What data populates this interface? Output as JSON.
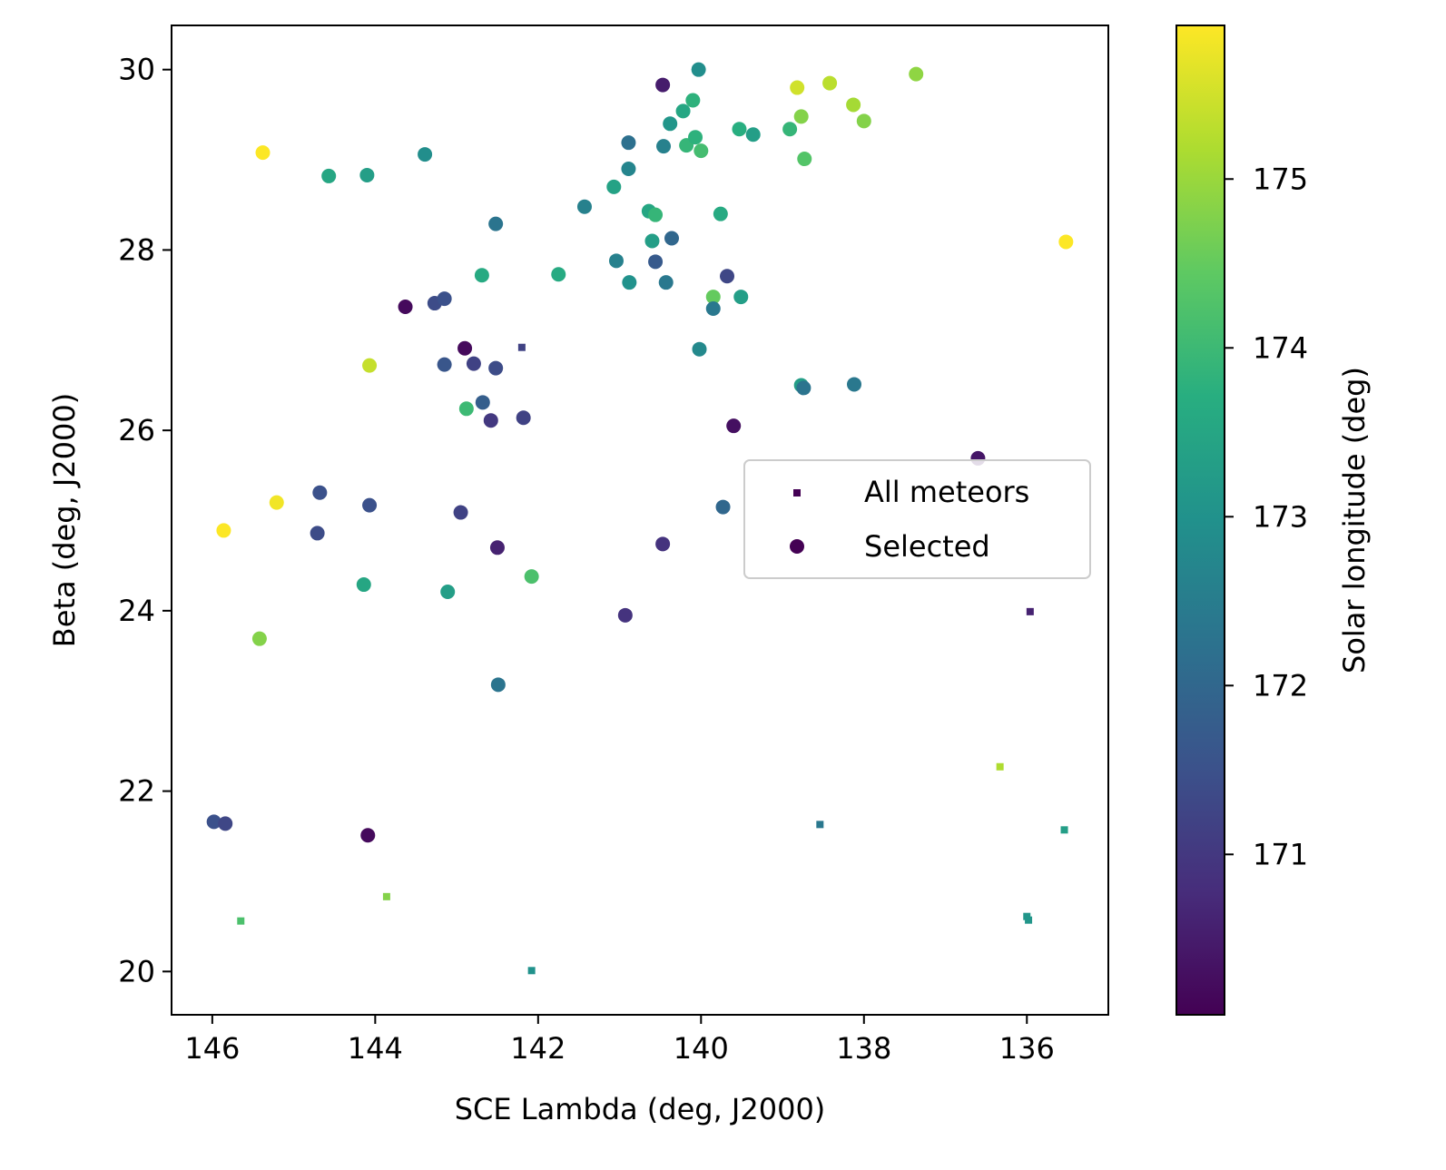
{
  "chart_data": {
    "type": "scatter",
    "xlabel": "SCE Lambda (deg, J2000)",
    "ylabel": "Beta (deg, J2000)",
    "xlim": [
      146.5,
      135.0
    ],
    "ylim": [
      19.52,
      30.49
    ],
    "x_inverted": true,
    "xticks": [
      146,
      144,
      142,
      140,
      138,
      136
    ],
    "yticks": [
      20,
      22,
      24,
      26,
      28,
      30
    ],
    "grid": false,
    "legend": {
      "placement": "center-right",
      "entries": [
        "All meteors",
        "Selected"
      ]
    },
    "colorbar": {
      "label": "Solar longitude (deg)",
      "range": [
        170.05,
        175.91
      ],
      "ticks": [
        171,
        172,
        173,
        174,
        175
      ],
      "colormap": "viridis"
    },
    "series": [
      {
        "name": "All meteors",
        "marker": "square",
        "points": [
          [
            142.2,
            26.92,
            171.2
          ],
          [
            135.96,
            23.99,
            170.6
          ],
          [
            136.33,
            22.27,
            175.2
          ],
          [
            138.54,
            21.63,
            172.4
          ],
          [
            135.54,
            21.57,
            173.3
          ],
          [
            136.0,
            20.61,
            173.1
          ],
          [
            135.98,
            20.57,
            173.1
          ],
          [
            143.86,
            20.83,
            174.8
          ],
          [
            145.65,
            20.56,
            174.2
          ],
          [
            142.08,
            20.01,
            173.0
          ]
        ]
      },
      {
        "name": "Selected",
        "marker": "circle",
        "points": [
          [
            145.38,
            29.08,
            175.9
          ],
          [
            144.57,
            28.82,
            173.5
          ],
          [
            144.1,
            28.83,
            173.3
          ],
          [
            143.39,
            29.06,
            172.9
          ],
          [
            142.52,
            28.29,
            172.3
          ],
          [
            142.69,
            27.72,
            173.6
          ],
          [
            141.75,
            27.73,
            173.6
          ],
          [
            141.43,
            28.48,
            172.6
          ],
          [
            141.07,
            28.7,
            173.4
          ],
          [
            140.89,
            28.9,
            172.7
          ],
          [
            140.89,
            29.19,
            172.2
          ],
          [
            140.47,
            29.83,
            170.5
          ],
          [
            140.46,
            29.15,
            172.6
          ],
          [
            140.38,
            29.4,
            173.1
          ],
          [
            140.22,
            29.54,
            173.5
          ],
          [
            140.1,
            29.66,
            173.8
          ],
          [
            140.03,
            30.0,
            172.9
          ],
          [
            140.18,
            29.16,
            173.9
          ],
          [
            140.07,
            29.25,
            173.8
          ],
          [
            140.0,
            29.1,
            174.1
          ],
          [
            140.64,
            28.43,
            173.5
          ],
          [
            140.56,
            28.39,
            173.9
          ],
          [
            140.6,
            28.1,
            173.3
          ],
          [
            140.36,
            28.13,
            172.0
          ],
          [
            140.56,
            27.87,
            171.7
          ],
          [
            140.43,
            27.64,
            172.4
          ],
          [
            141.04,
            27.88,
            172.6
          ],
          [
            140.88,
            27.64,
            173.0
          ],
          [
            139.76,
            28.4,
            173.6
          ],
          [
            139.68,
            27.71,
            171.3
          ],
          [
            139.85,
            27.48,
            174.5
          ],
          [
            139.85,
            27.35,
            172.4
          ],
          [
            139.51,
            27.48,
            173.3
          ],
          [
            139.53,
            29.34,
            173.7
          ],
          [
            139.36,
            29.28,
            173.3
          ],
          [
            138.91,
            29.34,
            173.9
          ],
          [
            138.82,
            29.8,
            175.5
          ],
          [
            138.77,
            29.48,
            174.8
          ],
          [
            138.42,
            29.85,
            175.3
          ],
          [
            138.13,
            29.61,
            175.1
          ],
          [
            138.0,
            29.43,
            174.8
          ],
          [
            138.73,
            29.01,
            174.3
          ],
          [
            137.36,
            29.95,
            174.9
          ],
          [
            140.02,
            26.9,
            172.8
          ],
          [
            138.77,
            26.5,
            173.3
          ],
          [
            138.74,
            26.47,
            172.3
          ],
          [
            138.12,
            26.51,
            172.4
          ],
          [
            139.6,
            26.05,
            170.3
          ],
          [
            135.52,
            28.09,
            175.9
          ],
          [
            136.6,
            25.69,
            170.4
          ],
          [
            139.73,
            25.15,
            172.0
          ],
          [
            140.47,
            24.74,
            170.9
          ],
          [
            140.93,
            23.95,
            170.9
          ],
          [
            142.08,
            24.38,
            174.2
          ],
          [
            142.5,
            24.7,
            170.6
          ],
          [
            142.49,
            23.18,
            172.3
          ],
          [
            143.11,
            24.21,
            173.3
          ],
          [
            144.14,
            24.29,
            173.5
          ],
          [
            145.42,
            23.69,
            174.8
          ],
          [
            145.86,
            24.89,
            175.9
          ],
          [
            145.21,
            25.2,
            175.8
          ],
          [
            144.68,
            25.31,
            171.5
          ],
          [
            144.71,
            24.86,
            171.4
          ],
          [
            144.07,
            25.17,
            171.5
          ],
          [
            142.95,
            25.09,
            171.2
          ],
          [
            143.63,
            27.37,
            170.2
          ],
          [
            143.27,
            27.41,
            171.4
          ],
          [
            143.15,
            27.46,
            171.5
          ],
          [
            142.9,
            26.91,
            170.2
          ],
          [
            143.15,
            26.73,
            171.6
          ],
          [
            142.79,
            26.74,
            171.2
          ],
          [
            142.52,
            26.69,
            171.4
          ],
          [
            144.07,
            26.72,
            175.4
          ],
          [
            142.68,
            26.31,
            171.8
          ],
          [
            142.88,
            26.24,
            174.0
          ],
          [
            142.58,
            26.11,
            171.0
          ],
          [
            142.18,
            26.14,
            171.2
          ],
          [
            145.98,
            21.66,
            171.5
          ],
          [
            145.84,
            21.64,
            171.3
          ],
          [
            144.09,
            21.51,
            170.2
          ]
        ]
      }
    ]
  }
}
